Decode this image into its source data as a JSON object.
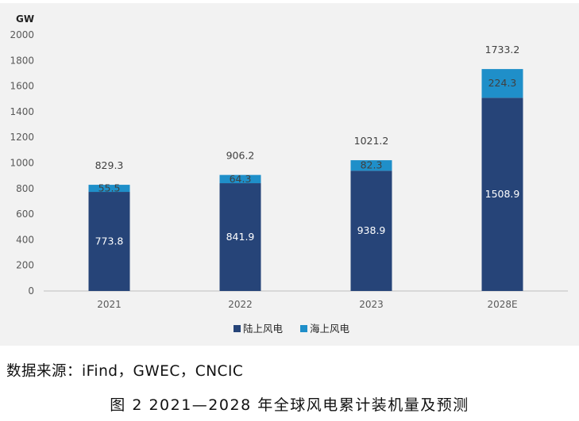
{
  "chart_data": {
    "type": "bar",
    "stacked": true,
    "ylabel": "GW",
    "ylim": [
      0,
      2000
    ],
    "yticks": [
      "0",
      "200",
      "400",
      "600",
      "800",
      "1000",
      "1200",
      "1400",
      "1600",
      "1800",
      "2000"
    ],
    "categories": [
      "2021",
      "2022",
      "2023",
      "2028E"
    ],
    "series": [
      {
        "name": "陆上风电",
        "color": "#264478",
        "values": [
          773.8,
          841.9,
          938.9,
          1508.9
        ],
        "labels": [
          "773.8",
          "841.9",
          "938.9",
          "1508.9"
        ]
      },
      {
        "name": "海上风电",
        "color": "#1f8fc9",
        "values": [
          55.5,
          64.3,
          82.3,
          224.3
        ],
        "labels": [
          "55.5",
          "64.3",
          "82.3",
          "224.3"
        ]
      }
    ],
    "totals": [
      "829.3",
      "906.2",
      "1021.2",
      "1733.2"
    ],
    "legend_position": "bottom",
    "grid": false
  },
  "source_text": "数据来源：iFind，GWEC，CNCIC",
  "caption": "图 2  2021—2028 年全球风电累计装机量及预测"
}
